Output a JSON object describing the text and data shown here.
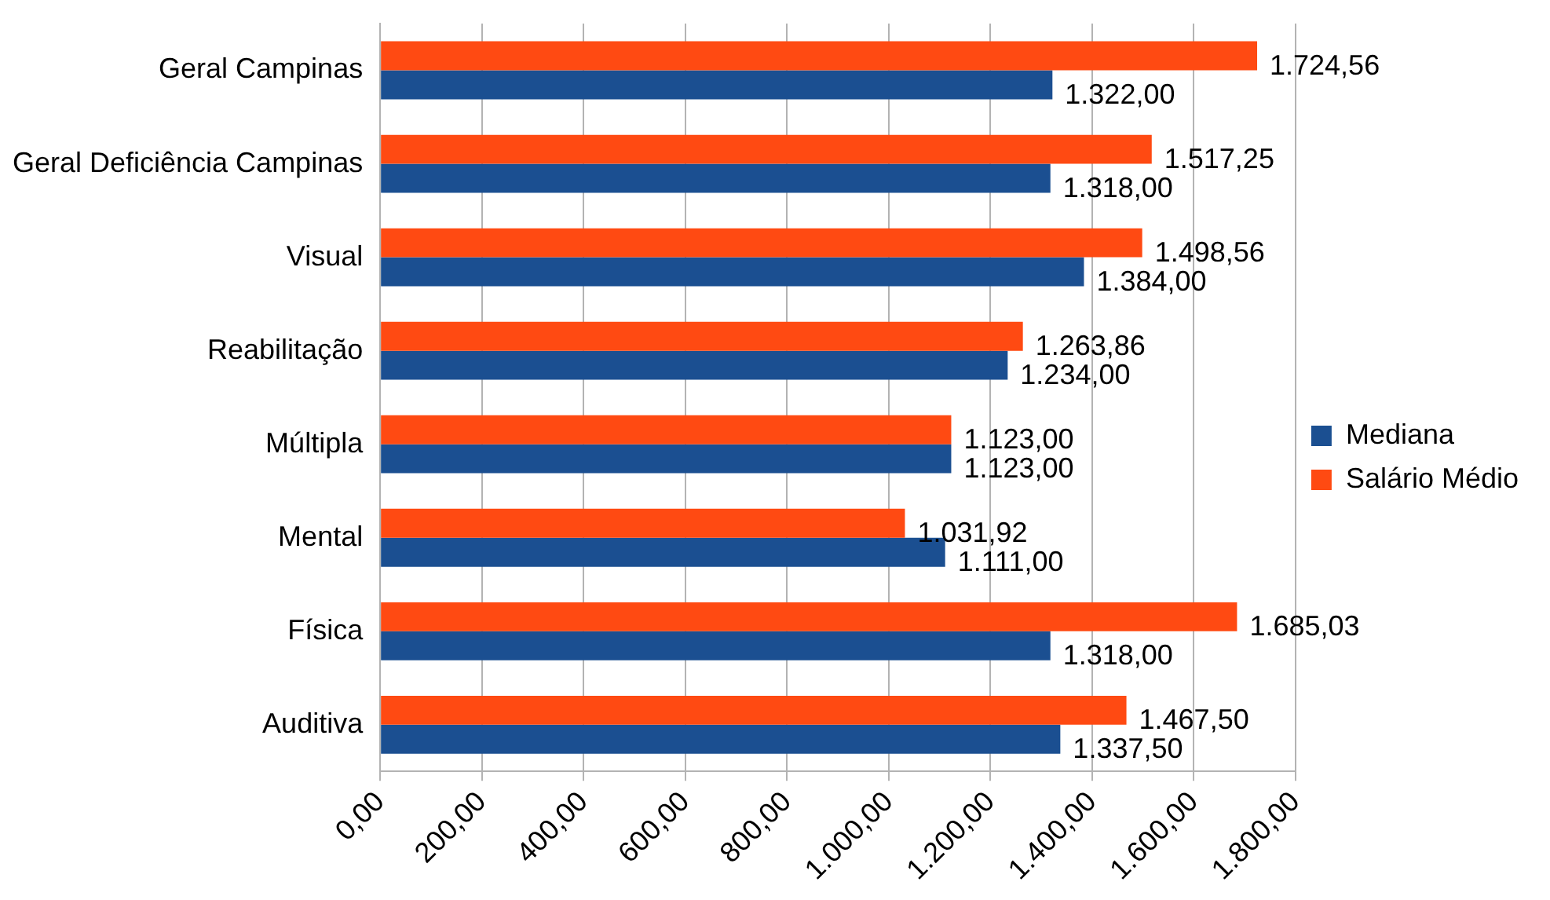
{
  "chart_data": {
    "type": "bar",
    "orientation": "horizontal",
    "categories": [
      "Geral Campinas",
      "Geral Deficiência Campinas",
      "Visual",
      "Reabilitação",
      "Múltipla",
      "Mental",
      "Física",
      "Auditiva"
    ],
    "series": [
      {
        "name": "Mediana",
        "color": "#1b4f91",
        "values": [
          1322,
          1318,
          1384,
          1234,
          1123,
          1111,
          1318,
          1337.5
        ],
        "value_labels": [
          "1.322,00",
          "1.318,00",
          "1.384,00",
          "1.234,00",
          "1.123,00",
          "1.111,00",
          "1.318,00",
          "1.337,50"
        ]
      },
      {
        "name": "Salário Médio",
        "color": "#ff4a12",
        "values": [
          1724.56,
          1517.25,
          1498.56,
          1263.86,
          1123,
          1031.92,
          1685.03,
          1467.5
        ],
        "value_labels": [
          "1.724,56",
          "1.517,25",
          "1.498,56",
          "1.263,86",
          "1.123,00",
          "1.031,92",
          "1.685,03",
          "1.467,50"
        ]
      }
    ],
    "xlim": [
      0,
      1800
    ],
    "xticks": [
      {
        "value": 0,
        "label": "0,00"
      },
      {
        "value": 200,
        "label": "200,00"
      },
      {
        "value": 400,
        "label": "400,00"
      },
      {
        "value": 600,
        "label": "600,00"
      },
      {
        "value": 800,
        "label": "800,00"
      },
      {
        "value": 1000,
        "label": "1.000,00"
      },
      {
        "value": 1200,
        "label": "1.200,00"
      },
      {
        "value": 1400,
        "label": "1.400,00"
      },
      {
        "value": 1600,
        "label": "1.600,00"
      },
      {
        "value": 1800,
        "label": "1.800,00"
      }
    ],
    "grid": "x",
    "legend": "right"
  }
}
